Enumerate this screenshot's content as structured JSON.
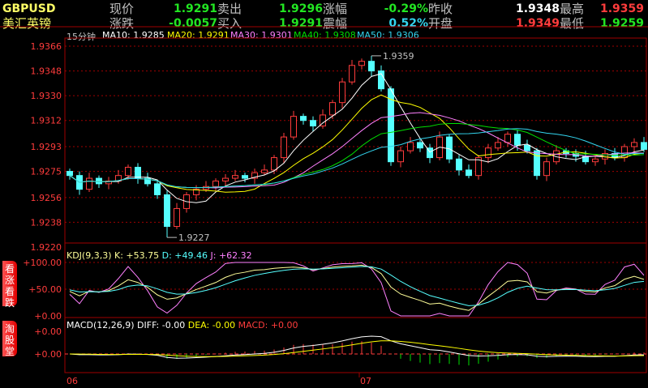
{
  "header": {
    "symbol": "GBPUSD",
    "name": "美汇英镑",
    "fields": [
      {
        "label": "现价",
        "value": "1.9291",
        "color": "#22e622"
      },
      {
        "label": "卖出",
        "value": "1.9296",
        "color": "#22e622"
      },
      {
        "label": "涨幅",
        "value": "-0.29%",
        "color": "#22e622"
      },
      {
        "label": "昨收",
        "value": "1.9348",
        "color": "#ffffff"
      },
      {
        "label": "最高",
        "value": "1.9359",
        "color": "#ff3c3c"
      },
      {
        "label": "涨跌",
        "value": "-0.0057",
        "color": "#22e622"
      },
      {
        "label": "买入",
        "value": "1.9291",
        "color": "#22e622"
      },
      {
        "label": "震幅",
        "value": "0.52%",
        "color": "#33d6f0"
      },
      {
        "label": "开盘",
        "value": "1.9349",
        "color": "#ff3c3c"
      },
      {
        "label": "最低",
        "value": "1.9259",
        "color": "#22e622"
      }
    ]
  },
  "ma_bar": {
    "period": "15分钟",
    "items": [
      {
        "text": "MA10: 1.9285",
        "color": "#ffffff"
      },
      {
        "text": "MA20: 1.9291",
        "color": "#ffff00"
      },
      {
        "text": "MA30: 1.9301",
        "color": "#ff80ff"
      },
      {
        "text": "MA40: 1.9308",
        "color": "#00e000"
      },
      {
        "text": "MA50: 1.9306",
        "color": "#33d6f0"
      }
    ]
  },
  "side_tabs": [
    "看涨看跌",
    "淘股堂"
  ],
  "kdj": {
    "title": "KDJ(9,3,3)",
    "k": "K: +53.75",
    "d": "D: +49.46",
    "j": "J: +62.32",
    "axis": [
      "+100.00",
      "+50.00",
      "+0.00"
    ]
  },
  "macd": {
    "title": "MACD(12,26,9)",
    "diff": "DIFF: -0.00",
    "dea": "DEA: -0.00",
    "macd": "MACD: +0.00",
    "axis": [
      "+0.00",
      "+0.00"
    ]
  },
  "dates": [
    "06",
    "07"
  ],
  "colors": {
    "up": "#ff3c3c",
    "down": "#55ffff",
    "grid": "#a00000",
    "axis_text": "#ff3c3c"
  },
  "chart_data": {
    "type": "candlestick",
    "y_ticks": [
      "1.9366",
      "1.9348",
      "1.9330",
      "1.9312",
      "1.9293",
      "1.9275",
      "1.9256",
      "1.9238",
      "1.9220"
    ],
    "ylim": [
      1.922,
      1.9366
    ],
    "high_annotation": "1.9359",
    "low_annotation": "1.9227",
    "closes": [
      1.9272,
      1.9262,
      1.927,
      1.9266,
      1.9268,
      1.9272,
      1.9278,
      1.927,
      1.9266,
      1.9258,
      1.9235,
      1.9248,
      1.9258,
      1.9262,
      1.9264,
      1.9268,
      1.927,
      1.9272,
      1.927,
      1.9274,
      1.9276,
      1.9285,
      1.93,
      1.9315,
      1.9312,
      1.9308,
      1.9316,
      1.9325,
      1.934,
      1.9352,
      1.9355,
      1.9348,
      1.9335,
      1.9282,
      1.929,
      1.9296,
      1.9292,
      1.9285,
      1.93,
      1.9284,
      1.9276,
      1.9272,
      1.9285,
      1.9292,
      1.9296,
      1.9302,
      1.9294,
      1.929,
      1.9272,
      1.9282,
      1.929,
      1.9288,
      1.9286,
      1.9282,
      1.9284,
      1.9288,
      1.9285,
      1.9293,
      1.9296,
      1.9291
    ]
  }
}
